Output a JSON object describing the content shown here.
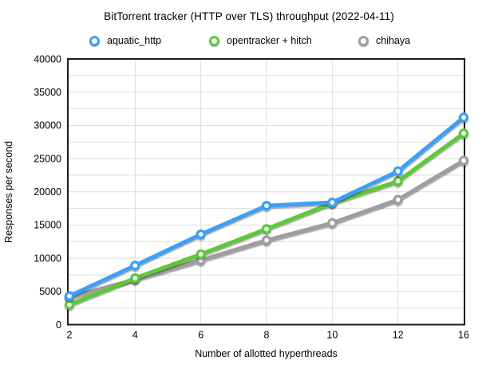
{
  "chart_data": {
    "type": "line",
    "title": "BitTorrent tracker (HTTP over TLS) throughput (2022-04-11)",
    "xlabel": "Number of allotted hyperthreads",
    "ylabel": "Responses per second",
    "categories": [
      2,
      4,
      6,
      8,
      10,
      12,
      16
    ],
    "series": [
      {
        "name": "aquatic_http",
        "color": "#3E9FF7",
        "values": [
          4300,
          8900,
          13600,
          17900,
          18400,
          23100,
          31200
        ]
      },
      {
        "name": "opentracker + hitch",
        "color": "#5CC937",
        "values": [
          3000,
          7000,
          10600,
          14400,
          18300,
          21600,
          28800
        ]
      },
      {
        "name": "chihaya",
        "color": "#9E9E9E",
        "values": [
          4100,
          6800,
          9700,
          12700,
          15300,
          18800,
          24700
        ]
      }
    ],
    "ylim": [
      0,
      40000
    ],
    "y_major_step": 5000,
    "y_minor_step": 2500,
    "grid": true,
    "legend_position": "top",
    "axis_color": "#1a1a1a",
    "gridline_color": "#dcdcdc"
  }
}
